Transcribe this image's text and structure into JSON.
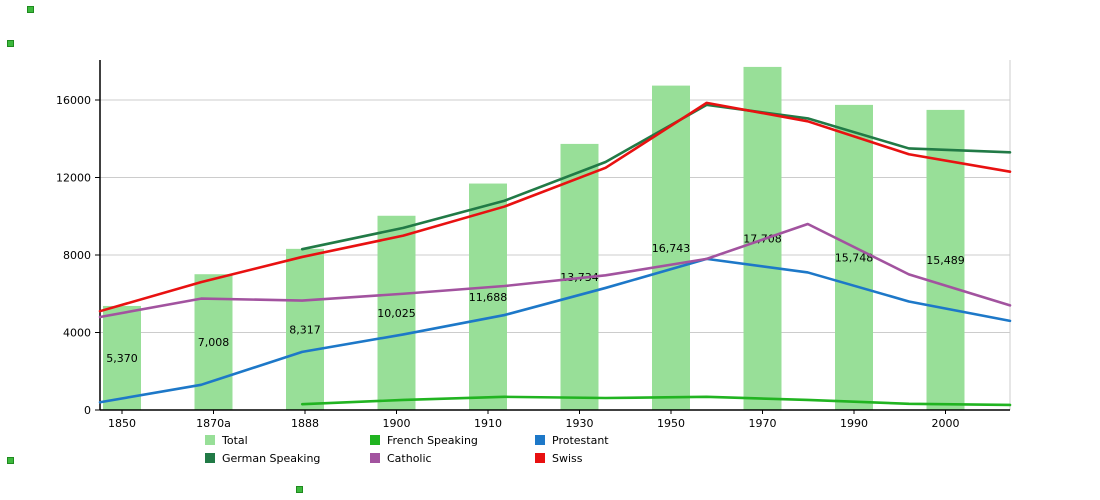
{
  "chart_data": {
    "type": "bar",
    "subtype": "bar-line-combo",
    "title": "",
    "categories": [
      "1850",
      "1870a",
      "1888",
      "1900",
      "1910",
      "1930",
      "1950",
      "1970",
      "1990",
      "2000"
    ],
    "bar_series": {
      "name": "Total",
      "color": "#98df98",
      "values": [
        5370,
        7008,
        8317,
        10025,
        11688,
        13734,
        16743,
        17708,
        15748,
        15489
      ],
      "value_labels": [
        "5,370",
        "7,008",
        "8,317",
        "10,025",
        "11,688",
        "13,734",
        "16,743",
        "17,708",
        "15,748",
        "15,489"
      ]
    },
    "line_series": [
      {
        "name": "German Speaking",
        "color": "#217a46",
        "values": [
          null,
          null,
          8300,
          9400,
          10800,
          12800,
          15750,
          15050,
          13500,
          13300
        ]
      },
      {
        "name": "French Speaking",
        "color": "#21b421",
        "values": [
          null,
          null,
          300,
          520,
          680,
          620,
          680,
          520,
          320,
          260
        ]
      },
      {
        "name": "Protestant",
        "color": "#1d78c8",
        "values": [
          400,
          1300,
          3000,
          3900,
          4900,
          6300,
          7800,
          7100,
          5600,
          4600
        ]
      },
      {
        "name": "Catholic",
        "color": "#a2539f",
        "values": [
          4800,
          5750,
          5650,
          6000,
          6400,
          6950,
          7800,
          9600,
          7000,
          5400
        ]
      },
      {
        "name": "Swiss",
        "color": "#e81111",
        "values": [
          5100,
          6600,
          7900,
          9000,
          10500,
          12500,
          15850,
          14900,
          13200,
          12300
        ]
      }
    ],
    "yticks": [
      0,
      4000,
      8000,
      12000,
      16000
    ],
    "ylim": [
      0,
      18000
    ],
    "xlabel": "",
    "ylabel": "",
    "grid": "horizontal-major",
    "gridline_color": "#cccccc",
    "legend_position": "bottom"
  },
  "legend": {
    "items": [
      {
        "label": "Total",
        "color": "#98df98"
      },
      {
        "label": "German Speaking",
        "color": "#217a46"
      },
      {
        "label": "French Speaking",
        "color": "#21b421"
      },
      {
        "label": "Catholic",
        "color": "#a2539f"
      },
      {
        "label": "Protestant",
        "color": "#1d78c8"
      },
      {
        "label": "Swiss",
        "color": "#e81111"
      }
    ]
  }
}
